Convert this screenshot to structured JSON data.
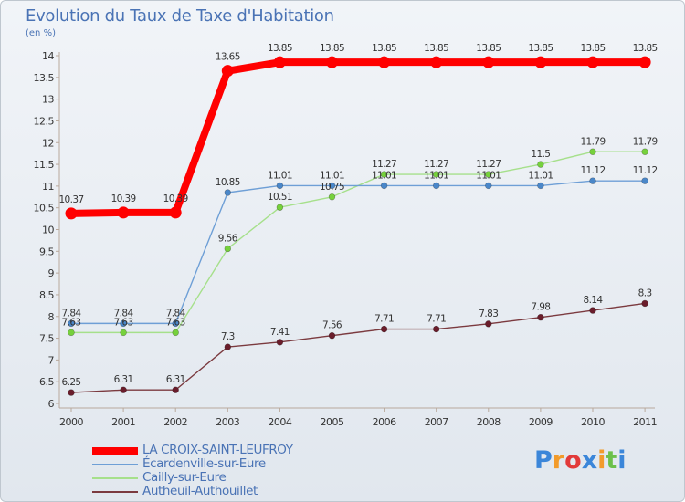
{
  "chart_data": {
    "type": "line",
    "title": "Evolution du Taux de Taxe d'Habitation",
    "subtitle": "(en %)",
    "xlabel": "",
    "ylabel": "(en %)",
    "ylim": [
      6,
      14
    ],
    "yticks": [
      "6",
      "6.5",
      "7",
      "7.5",
      "8",
      "8.5",
      "9",
      "9.5",
      "10",
      "10.5",
      "11",
      "11.5",
      "12",
      "12.5",
      "13",
      "13.5",
      "14"
    ],
    "categories": [
      "2000",
      "2001",
      "2002",
      "2003",
      "2004",
      "2005",
      "2006",
      "2007",
      "2008",
      "2009",
      "2010",
      "2011"
    ],
    "grid": false,
    "legend_position": "bottom-left",
    "series": [
      {
        "name": "LA CROIX-SAINT-LEUFROY",
        "color": "#ff0000",
        "values": [
          10.37,
          10.39,
          10.39,
          13.65,
          13.85,
          13.85,
          13.85,
          13.85,
          13.85,
          13.85,
          13.85,
          13.85
        ],
        "labels": [
          "10.37",
          "10.39",
          "10.39",
          "13.65",
          "13.85",
          "13.85",
          "13.85",
          "13.85",
          "13.85",
          "13.85",
          "13.85",
          "13.85"
        ]
      },
      {
        "name": "Écardenville-sur-Eure",
        "color": "#6e9fd6",
        "marker_color": "#4a87c9",
        "values": [
          7.84,
          7.84,
          7.84,
          10.85,
          11.01,
          11.01,
          11.01,
          11.01,
          11.01,
          11.01,
          11.12,
          11.12
        ],
        "labels": [
          "7.84",
          "7.84",
          "7.84",
          "10.85",
          "11.01",
          "11.01",
          "11.01",
          "11.01",
          "11.01",
          "11.01",
          "11.12",
          "11.12"
        ]
      },
      {
        "name": "Cailly-sur-Eure",
        "color": "#a6e08b",
        "marker_color": "#76d13c",
        "values": [
          7.63,
          7.63,
          7.63,
          9.56,
          10.51,
          10.75,
          11.27,
          11.27,
          11.27,
          11.5,
          11.79,
          11.79
        ],
        "labels": [
          "7.63",
          "7.63",
          "7.63",
          "9.56",
          "10.51",
          "10.75",
          "11.27",
          "11.27",
          "11.27",
          "11.5",
          "11.79",
          "11.79"
        ]
      },
      {
        "name": "Autheuil-Authouillet",
        "color": "#7b3a3f",
        "marker_color": "#6a1d2b",
        "values": [
          6.25,
          6.31,
          6.31,
          7.3,
          7.41,
          7.56,
          7.71,
          7.71,
          7.83,
          7.98,
          8.14,
          8.3
        ],
        "labels": [
          "6.25",
          "6.31",
          "6.31",
          "7.3",
          "7.41",
          "7.56",
          "7.71",
          "7.71",
          "7.83",
          "7.98",
          "8.14",
          "8.3"
        ]
      }
    ]
  },
  "brand": {
    "letters": [
      "P",
      "r",
      "o",
      "x",
      "i",
      "t",
      "i"
    ],
    "colors": [
      "#3b86d9",
      "#f29b2b",
      "#e23a3a",
      "#3b86d9",
      "#f29b2b",
      "#6cc04a",
      "#3b86d9"
    ]
  }
}
